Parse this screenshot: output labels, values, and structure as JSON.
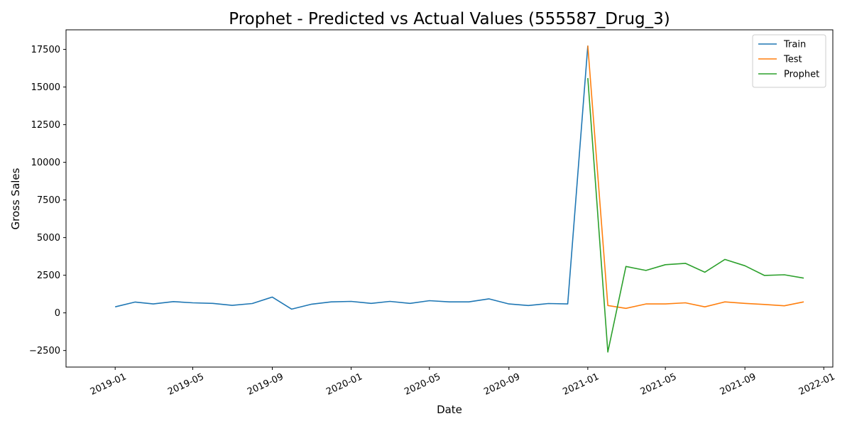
{
  "chart_data": {
    "type": "line",
    "title": "Prophet - Predicted vs Actual Values (555587_Drug_3)",
    "xlabel": "Date",
    "ylabel": "Gross Sales",
    "xlim": [
      "2018-10-17",
      "2022-01-15"
    ],
    "ylim": [
      -3600,
      18800
    ],
    "x_ticks": [
      "2019-01",
      "2019-05",
      "2019-09",
      "2020-01",
      "2020-05",
      "2020-09",
      "2021-01",
      "2021-05",
      "2021-09",
      "2022-01"
    ],
    "y_ticks": [
      -2500,
      0,
      2500,
      5000,
      7500,
      10000,
      12500,
      15000,
      17500
    ],
    "grid": false,
    "legend_position": "top-right",
    "series": [
      {
        "name": "Train",
        "color": "#1f77b4",
        "x": [
          "2019-01-01",
          "2019-02-01",
          "2019-03-01",
          "2019-04-01",
          "2019-05-01",
          "2019-06-01",
          "2019-07-01",
          "2019-08-01",
          "2019-09-01",
          "2019-10-01",
          "2019-11-01",
          "2019-12-01",
          "2020-01-01",
          "2020-02-01",
          "2020-03-01",
          "2020-04-01",
          "2020-05-01",
          "2020-06-01",
          "2020-07-01",
          "2020-08-01",
          "2020-09-01",
          "2020-10-01",
          "2020-11-01",
          "2020-12-01",
          "2021-01-01"
        ],
        "values": [
          400,
          720,
          590,
          750,
          670,
          630,
          500,
          620,
          1050,
          250,
          580,
          730,
          760,
          630,
          760,
          630,
          810,
          730,
          730,
          930,
          590,
          490,
          620,
          590,
          17750
        ]
      },
      {
        "name": "Test",
        "color": "#ff7f0e",
        "x": [
          "2021-01-01",
          "2021-02-01",
          "2021-03-01",
          "2021-04-01",
          "2021-05-01",
          "2021-06-01",
          "2021-07-01",
          "2021-08-01",
          "2021-09-01",
          "2021-10-01",
          "2021-11-01",
          "2021-12-01"
        ],
        "values": [
          17750,
          490,
          300,
          590,
          590,
          670,
          400,
          730,
          630,
          560,
          470,
          730
        ]
      },
      {
        "name": "Prophet",
        "color": "#2ca02c",
        "x": [
          "2021-01-01",
          "2021-02-01",
          "2021-03-01",
          "2021-04-01",
          "2021-05-01",
          "2021-06-01",
          "2021-07-01",
          "2021-08-01",
          "2021-09-01",
          "2021-10-01",
          "2021-11-01",
          "2021-12-01"
        ],
        "values": [
          15600,
          -2600,
          3080,
          2820,
          3200,
          3290,
          2700,
          3550,
          3130,
          2490,
          2530,
          2310
        ]
      }
    ]
  }
}
